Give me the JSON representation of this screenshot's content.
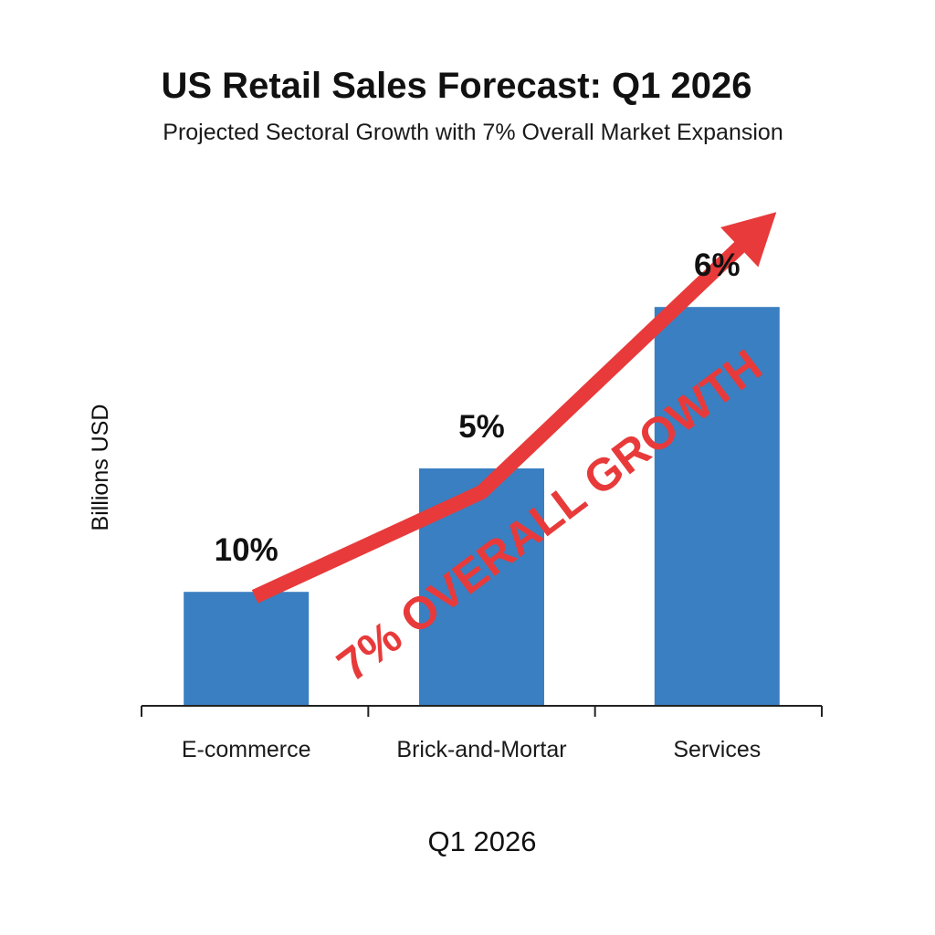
{
  "chart_data": {
    "type": "bar",
    "title": "US Retail Sales Forecast: Q1 2026",
    "subtitle": "Projected Sectoral Growth with 7% Overall Market Expansion",
    "xlabel": "Q1 2026",
    "ylabel": "Billions USD",
    "categories": [
      "E-commerce",
      "Brick-and-Mortar",
      "Services"
    ],
    "values": [
      1.2,
      2.5,
      4.2
    ],
    "ylim": [
      0,
      5
    ],
    "data_labels": [
      "10%",
      "5%",
      "6%"
    ],
    "annotation": {
      "text": "7% OVERALL GROWTH",
      "arrow_points": [
        [
          1.0,
          1.15
        ],
        [
          2.0,
          2.25
        ],
        [
          3.3,
          5.2
        ]
      ]
    },
    "grid": false,
    "legend": "none",
    "colors": {
      "bar": "#3a7fc1",
      "arrow": "#e83a3a",
      "axis": "#222222"
    }
  }
}
